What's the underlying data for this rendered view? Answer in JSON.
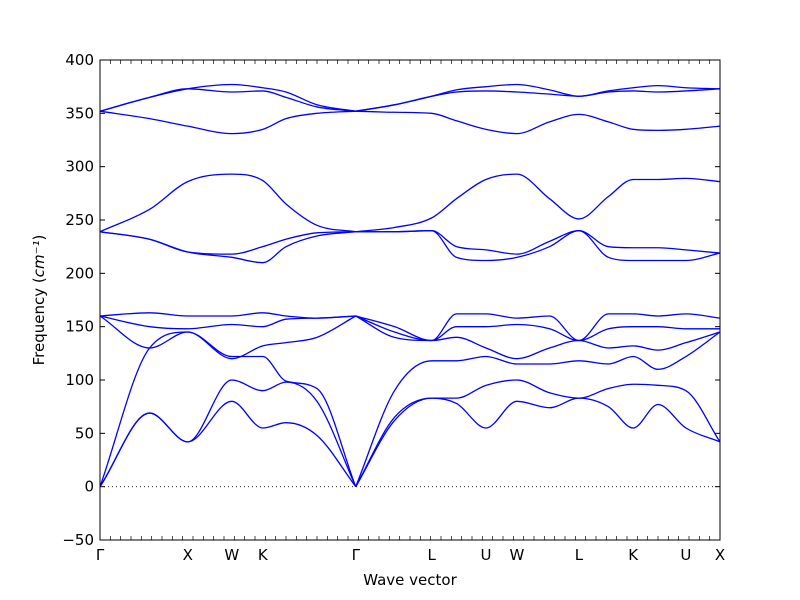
{
  "chart_data": {
    "type": "line",
    "title": "",
    "xlabel": "Wave vector",
    "ylabel": "Frequency",
    "ylabel_unit": "cm⁻¹",
    "ylim": [
      -50,
      400
    ],
    "yticks": [
      -50,
      0,
      50,
      100,
      150,
      200,
      250,
      300,
      350,
      400
    ],
    "xlim": [
      0,
      2.0
    ],
    "special_points": [
      {
        "label": "Γ",
        "x": 0.0
      },
      {
        "label": "X",
        "x": 0.283
      },
      {
        "label": "W",
        "x": 0.425
      },
      {
        "label": "K",
        "x": 0.525
      },
      {
        "label": "Γ",
        "x": 0.825
      },
      {
        "label": "L",
        "x": 1.07
      },
      {
        "label": "U",
        "x": 1.245
      },
      {
        "label": "W",
        "x": 1.345
      },
      {
        "label": "L",
        "x": 1.545
      },
      {
        "label": "K",
        "x": 1.72
      },
      {
        "label": "U",
        "x": 1.89
      },
      {
        "label": "X",
        "x": 2.0
      }
    ],
    "zero_line": true,
    "grid": false,
    "line_color": "#0000ff",
    "x": [
      0.0,
      0.16,
      0.283,
      0.425,
      0.525,
      0.6,
      0.7,
      0.825,
      0.95,
      1.07,
      1.15,
      1.245,
      1.345,
      1.45,
      1.545,
      1.64,
      1.72,
      1.8,
      1.89,
      2.0
    ],
    "series": [
      {
        "values": [
          0,
          69,
          42,
          80,
          55,
          60,
          48,
          0,
          62,
          83,
          78,
          55,
          80,
          74,
          83,
          75,
          55,
          77,
          55,
          42
        ]
      },
      {
        "values": [
          0,
          69,
          42,
          100,
          90,
          98,
          80,
          0,
          65,
          83,
          83,
          95,
          100,
          88,
          83,
          92,
          96,
          95,
          90,
          42
        ]
      },
      {
        "values": [
          0,
          130,
          145,
          122,
          122,
          99,
          92,
          0,
          90,
          118,
          118,
          122,
          115,
          115,
          118,
          115,
          122,
          110,
          122,
          145
        ]
      },
      {
        "values": [
          160,
          130,
          145,
          120,
          132,
          135,
          140,
          160,
          140,
          137,
          140,
          130,
          120,
          130,
          137,
          130,
          132,
          128,
          135,
          145
        ]
      },
      {
        "values": [
          160,
          150,
          148,
          152,
          150,
          157,
          158,
          160,
          145,
          137,
          150,
          150,
          152,
          148,
          137,
          148,
          150,
          150,
          148,
          148
        ]
      },
      {
        "values": [
          160,
          163,
          160,
          160,
          163,
          160,
          158,
          160,
          150,
          137,
          162,
          162,
          158,
          160,
          137,
          162,
          162,
          160,
          162,
          158
        ]
      },
      {
        "values": [
          239,
          232,
          220,
          215,
          210,
          225,
          235,
          239,
          239,
          240,
          215,
          212,
          215,
          225,
          240,
          215,
          212,
          212,
          212,
          219
        ]
      },
      {
        "values": [
          239,
          232,
          220,
          218,
          225,
          232,
          238,
          239,
          239,
          240,
          225,
          222,
          218,
          230,
          240,
          225,
          224,
          224,
          222,
          219
        ]
      },
      {
        "values": [
          239,
          260,
          286,
          293,
          287,
          265,
          245,
          239,
          243,
          252,
          270,
          288,
          293,
          270,
          251,
          272,
          288,
          288,
          289,
          286
        ]
      },
      {
        "values": [
          352,
          345,
          338,
          331,
          335,
          345,
          350,
          352,
          351,
          350,
          343,
          335,
          331,
          342,
          349,
          342,
          335,
          334,
          335,
          338
        ]
      },
      {
        "values": [
          352,
          365,
          373,
          370,
          371,
          365,
          356,
          352,
          358,
          366,
          370,
          371,
          370,
          368,
          366,
          370,
          371,
          370,
          371,
          373
        ]
      },
      {
        "values": [
          352,
          365,
          373,
          377,
          374,
          370,
          358,
          352,
          358,
          366,
          372,
          375,
          377,
          372,
          366,
          371,
          374,
          376,
          374,
          373
        ]
      }
    ]
  }
}
